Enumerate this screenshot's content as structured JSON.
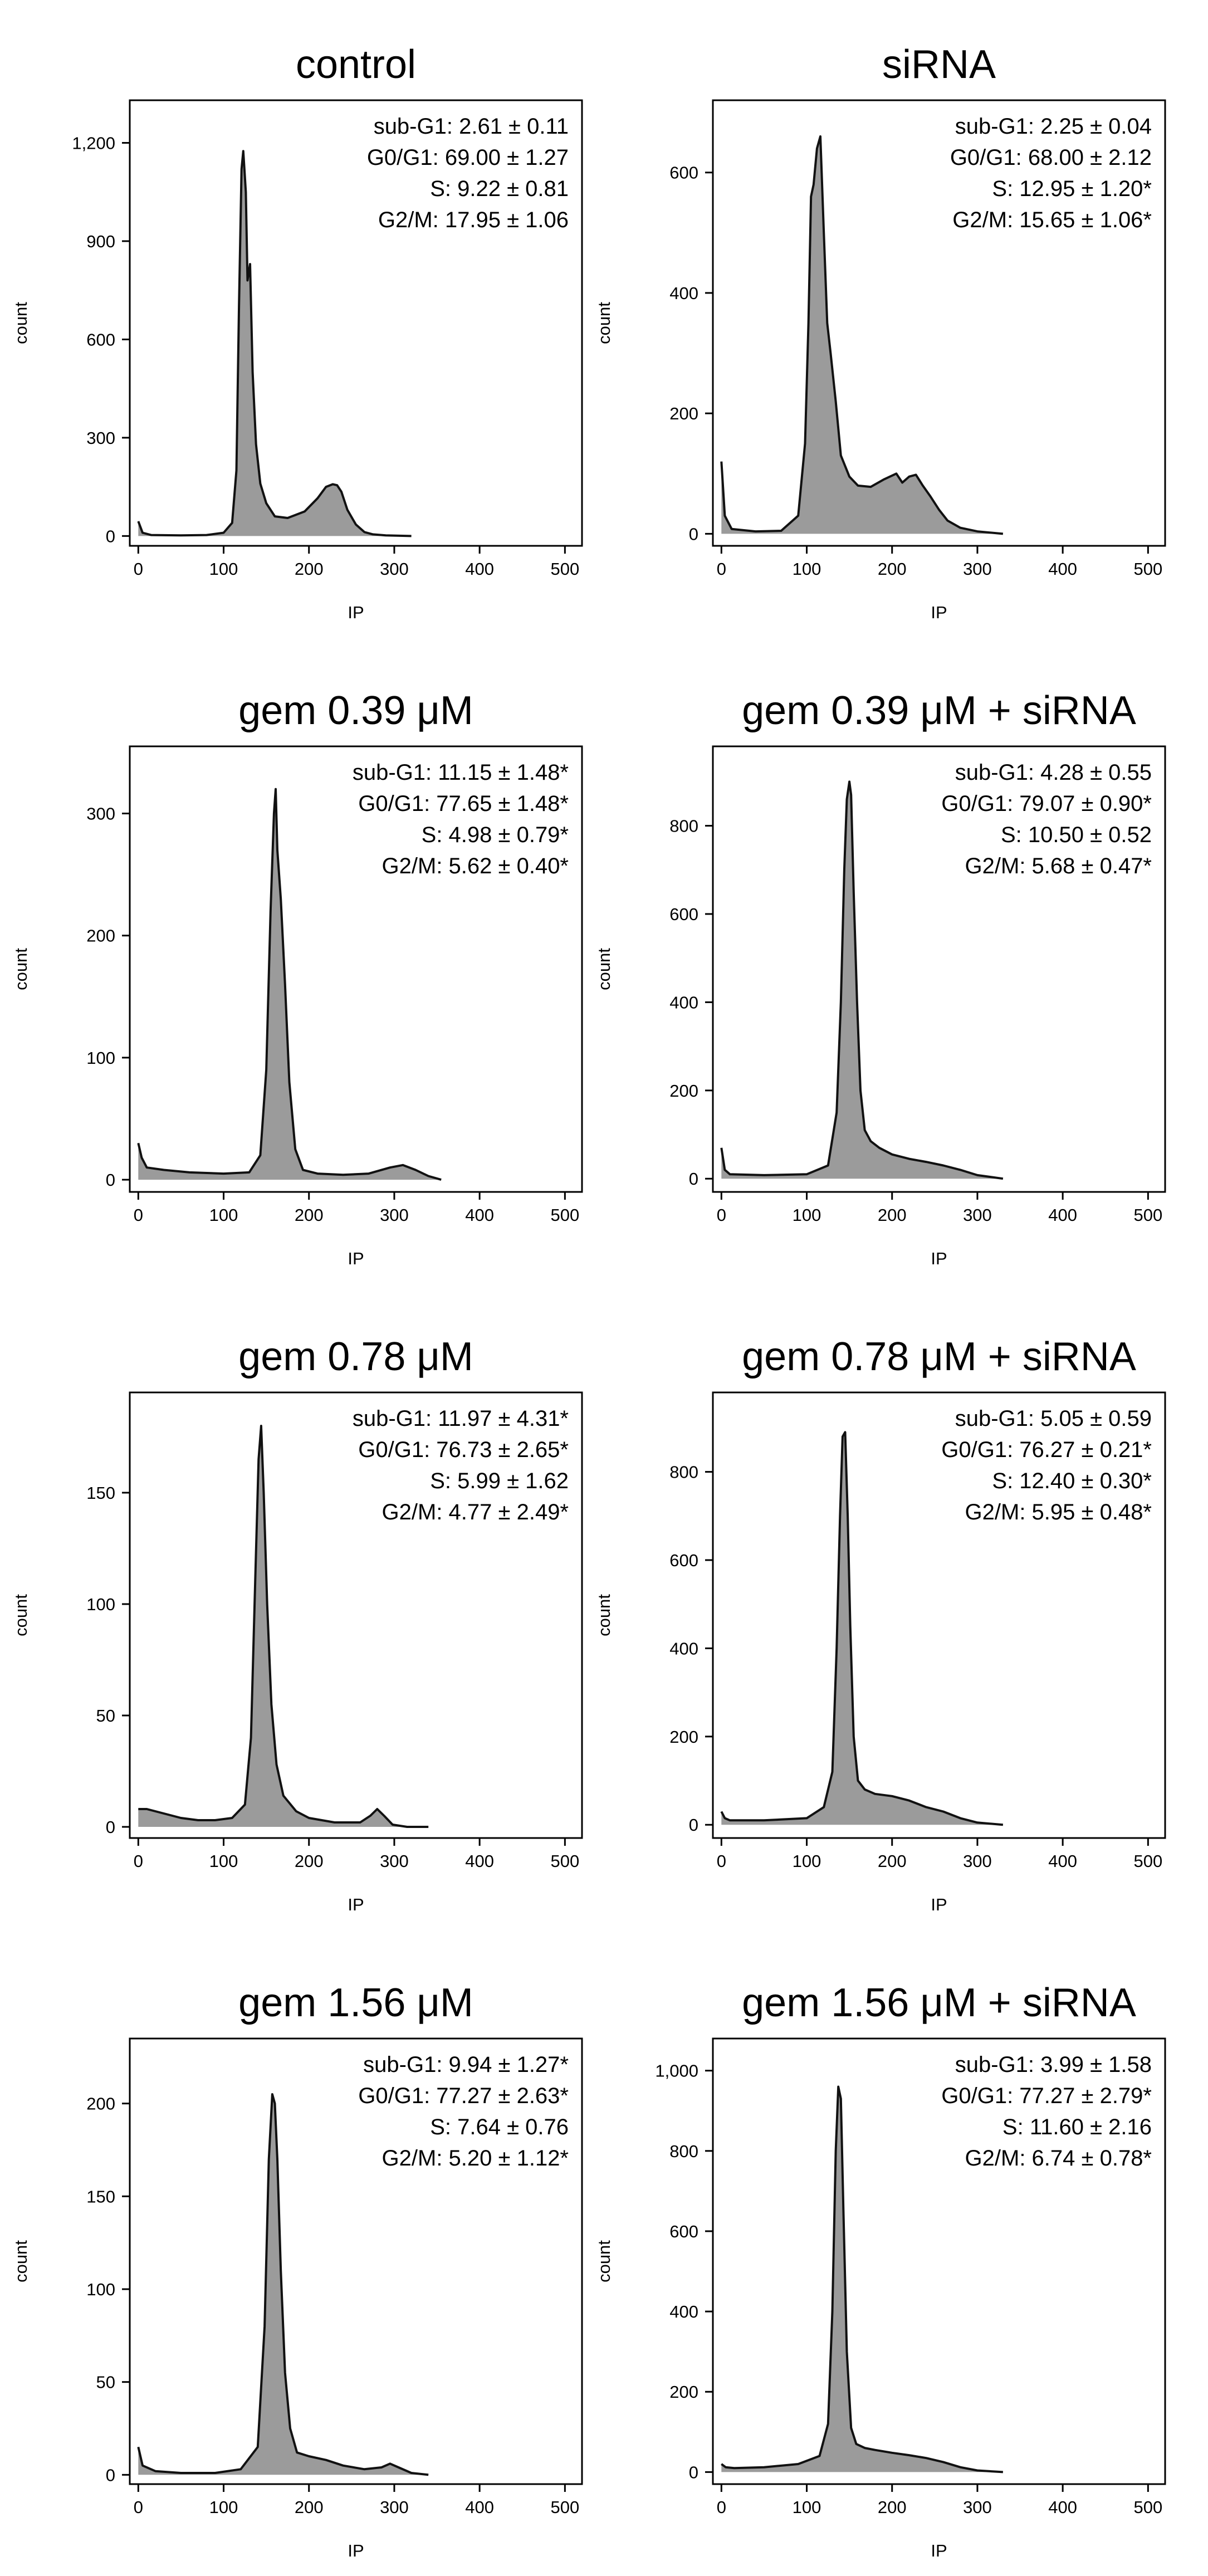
{
  "chart_data": [
    {
      "type": "area",
      "title": "control",
      "xlabel": "IP",
      "ylabel": "count",
      "xlim": [
        -10,
        520
      ],
      "ylim": [
        -30,
        1330
      ],
      "xticks": [
        0,
        100,
        200,
        300,
        400,
        500
      ],
      "xtick_labels": [
        "0",
        "100",
        "200",
        "300",
        "400",
        "500"
      ],
      "yticks": [
        0,
        300,
        600,
        900,
        1200
      ],
      "ytick_labels": [
        "0",
        "300",
        "600",
        "900",
        "1,200"
      ],
      "annotations": [
        "sub-G1: 2.61 ± 0.11",
        "G0/G1: 69.00 ± 1.27",
        "S: 9.22 ± 0.81",
        "G2/M: 17.95 ± 1.06"
      ],
      "x": [
        0,
        5,
        15,
        50,
        80,
        100,
        110,
        115,
        118,
        121,
        123,
        126,
        128,
        131,
        134,
        138,
        143,
        150,
        160,
        175,
        195,
        210,
        220,
        228,
        233,
        238,
        245,
        255,
        265,
        275,
        290,
        320
      ],
      "y": [
        45,
        10,
        3,
        2,
        3,
        10,
        40,
        200,
        700,
        1120,
        1175,
        1050,
        780,
        830,
        500,
        280,
        160,
        100,
        60,
        55,
        75,
        115,
        150,
        158,
        155,
        135,
        80,
        35,
        12,
        5,
        2,
        0
      ]
    },
    {
      "type": "area",
      "title": "siRNA",
      "xlabel": "IP",
      "ylabel": "count",
      "xlim": [
        -10,
        520
      ],
      "ylim": [
        -20,
        720
      ],
      "xticks": [
        0,
        100,
        200,
        300,
        400,
        500
      ],
      "xtick_labels": [
        "0",
        "100",
        "200",
        "300",
        "400",
        "500"
      ],
      "yticks": [
        0,
        200,
        400,
        600
      ],
      "ytick_labels": [
        "0",
        "200",
        "400",
        "600"
      ],
      "annotations": [
        "sub-G1: 2.25 ± 0.04",
        "G0/G1: 68.00 ± 2.12",
        "S: 12.95 ± 1.20*",
        "G2/M: 15.65 ± 1.06*"
      ],
      "x": [
        0,
        4,
        12,
        40,
        70,
        90,
        98,
        102,
        105,
        108,
        112,
        116,
        120,
        124,
        128,
        134,
        140,
        150,
        160,
        175,
        190,
        205,
        212,
        220,
        228,
        236,
        245,
        255,
        265,
        280,
        300,
        330
      ],
      "y": [
        120,
        30,
        8,
        4,
        5,
        30,
        150,
        350,
        560,
        580,
        640,
        660,
        500,
        350,
        300,
        220,
        130,
        95,
        80,
        78,
        90,
        100,
        85,
        95,
        98,
        80,
        62,
        40,
        22,
        10,
        4,
        0
      ]
    },
    {
      "type": "area",
      "title": "gem 0.39 μM",
      "xlabel": "IP",
      "ylabel": "count",
      "xlim": [
        -10,
        520
      ],
      "ylim": [
        -10,
        355
      ],
      "xticks": [
        0,
        100,
        200,
        300,
        400,
        500
      ],
      "xtick_labels": [
        "0",
        "100",
        "200",
        "300",
        "400",
        "500"
      ],
      "yticks": [
        0,
        100,
        200,
        300
      ],
      "ytick_labels": [
        "0",
        "100",
        "200",
        "300"
      ],
      "annotations": [
        "sub-G1: 11.15 ± 1.48*",
        "G0/G1: 77.65 ± 1.48*",
        "S: 4.98 ± 0.79*",
        "G2/M: 5.62 ± 0.40*"
      ],
      "x": [
        0,
        4,
        10,
        30,
        60,
        100,
        130,
        143,
        150,
        155,
        159,
        161,
        163,
        167,
        172,
        177,
        184,
        193,
        210,
        240,
        270,
        295,
        310,
        325,
        340,
        355
      ],
      "y": [
        30,
        18,
        10,
        8,
        6,
        5,
        6,
        20,
        90,
        220,
        300,
        320,
        270,
        230,
        160,
        80,
        25,
        8,
        5,
        4,
        5,
        10,
        12,
        8,
        3,
        0
      ]
    },
    {
      "type": "area",
      "title": "gem 0.39 μM + siRNA",
      "xlabel": "IP",
      "ylabel": "count",
      "xlim": [
        -10,
        520
      ],
      "ylim": [
        -30,
        980
      ],
      "xticks": [
        0,
        100,
        200,
        300,
        400,
        500
      ],
      "xtick_labels": [
        "0",
        "100",
        "200",
        "300",
        "400",
        "500"
      ],
      "yticks": [
        0,
        200,
        400,
        600,
        800
      ],
      "ytick_labels": [
        "0",
        "200",
        "400",
        "600",
        "800"
      ],
      "annotations": [
        "sub-G1: 4.28 ± 0.55",
        "G0/G1: 79.07 ± 0.90*",
        "S: 10.50 ± 0.52",
        "G2/M: 5.68 ± 0.47*"
      ],
      "x": [
        0,
        4,
        10,
        50,
        100,
        125,
        135,
        140,
        144,
        147,
        150,
        152,
        155,
        159,
        163,
        168,
        175,
        185,
        200,
        220,
        240,
        260,
        280,
        300,
        330
      ],
      "y": [
        70,
        20,
        10,
        8,
        10,
        30,
        150,
        400,
        700,
        860,
        900,
        870,
        650,
        400,
        200,
        110,
        85,
        70,
        55,
        45,
        38,
        30,
        20,
        8,
        0
      ]
    },
    {
      "type": "area",
      "title": "gem 0.78 μM",
      "xlabel": "IP",
      "ylabel": "count",
      "xlim": [
        -10,
        520
      ],
      "ylim": [
        -5,
        195
      ],
      "xticks": [
        0,
        100,
        200,
        300,
        400,
        500
      ],
      "xtick_labels": [
        "0",
        "100",
        "200",
        "300",
        "400",
        "500"
      ],
      "yticks": [
        0,
        50,
        100,
        150
      ],
      "ytick_labels": [
        "0",
        "50",
        "100",
        "150"
      ],
      "annotations": [
        "sub-G1: 11.97 ± 4.31*",
        "G0/G1: 76.73 ± 2.65*",
        "S: 5.99 ± 1.62",
        "G2/M: 4.77 ± 2.49*"
      ],
      "x": [
        0,
        10,
        30,
        50,
        70,
        90,
        110,
        125,
        132,
        137,
        141,
        144,
        147,
        151,
        156,
        162,
        170,
        185,
        200,
        230,
        260,
        272,
        280,
        288,
        298,
        315,
        340
      ],
      "y": [
        8,
        8,
        6,
        4,
        3,
        3,
        4,
        10,
        40,
        110,
        165,
        180,
        150,
        100,
        55,
        28,
        14,
        7,
        4,
        2,
        2,
        5,
        8,
        5,
        1,
        0,
        0
      ]
    },
    {
      "type": "area",
      "title": "gem 0.78 μM + siRNA",
      "xlabel": "IP",
      "ylabel": "count",
      "xlim": [
        -10,
        520
      ],
      "ylim": [
        -30,
        980
      ],
      "xticks": [
        0,
        100,
        200,
        300,
        400,
        500
      ],
      "xtick_labels": [
        "0",
        "100",
        "200",
        "300",
        "400",
        "500"
      ],
      "yticks": [
        0,
        200,
        400,
        600,
        800
      ],
      "ytick_labels": [
        "0",
        "200",
        "400",
        "600",
        "800"
      ],
      "annotations": [
        "sub-G1: 5.05 ± 0.59",
        "G0/G1: 76.27 ± 0.21*",
        "S: 12.40 ± 0.30*",
        "G2/M: 5.95 ± 0.48*"
      ],
      "x": [
        0,
        4,
        10,
        50,
        100,
        120,
        130,
        135,
        139,
        142,
        145,
        148,
        151,
        155,
        160,
        168,
        180,
        200,
        220,
        240,
        260,
        280,
        300,
        330
      ],
      "y": [
        30,
        15,
        10,
        10,
        15,
        40,
        120,
        400,
        700,
        880,
        890,
        700,
        450,
        200,
        100,
        80,
        70,
        65,
        55,
        40,
        30,
        15,
        5,
        0
      ]
    },
    {
      "type": "area",
      "title": "gem 1.56 μM",
      "xlabel": "IP",
      "ylabel": "count",
      "xlim": [
        -10,
        520
      ],
      "ylim": [
        -5,
        235
      ],
      "xticks": [
        0,
        100,
        200,
        300,
        400,
        500
      ],
      "xtick_labels": [
        "0",
        "100",
        "200",
        "300",
        "400",
        "500"
      ],
      "yticks": [
        0,
        50,
        100,
        150,
        200
      ],
      "ytick_labels": [
        "0",
        "50",
        "100",
        "150",
        "200"
      ],
      "annotations": [
        "sub-G1: 9.94 ± 1.27*",
        "G0/G1: 77.27 ± 2.63*",
        "S: 7.64 ± 0.76",
        "G2/M: 5.20 ± 1.12*"
      ],
      "x": [
        0,
        5,
        20,
        50,
        90,
        120,
        140,
        148,
        153,
        157,
        160,
        163,
        167,
        172,
        178,
        186,
        200,
        220,
        240,
        265,
        285,
        295,
        305,
        320,
        340
      ],
      "y": [
        15,
        5,
        2,
        1,
        1,
        3,
        15,
        80,
        170,
        205,
        200,
        170,
        110,
        55,
        25,
        12,
        10,
        8,
        5,
        3,
        4,
        6,
        4,
        1,
        0
      ]
    },
    {
      "type": "area",
      "title": "gem 1.56 μM + siRNA",
      "xlabel": "IP",
      "ylabel": "count",
      "xlim": [
        -10,
        520
      ],
      "ylim": [
        -30,
        1080
      ],
      "xticks": [
        0,
        100,
        200,
        300,
        400,
        500
      ],
      "xtick_labels": [
        "0",
        "100",
        "200",
        "300",
        "400",
        "500"
      ],
      "yticks": [
        0,
        200,
        400,
        600,
        800,
        1000
      ],
      "ytick_labels": [
        "0",
        "200",
        "400",
        "600",
        "800",
        "1,000"
      ],
      "annotations": [
        "sub-G1: 3.99 ± 1.58",
        "G0/G1: 77.27 ± 2.79*",
        "S: 11.60 ± 2.16",
        "G2/M: 6.74 ± 0.78*"
      ],
      "x": [
        0,
        5,
        15,
        50,
        90,
        115,
        125,
        130,
        134,
        137,
        140,
        143,
        147,
        152,
        158,
        168,
        180,
        200,
        220,
        240,
        260,
        280,
        300,
        330
      ],
      "y": [
        20,
        12,
        10,
        12,
        20,
        40,
        120,
        400,
        800,
        960,
        930,
        650,
        300,
        110,
        70,
        60,
        55,
        48,
        42,
        35,
        25,
        12,
        4,
        0
      ]
    }
  ]
}
